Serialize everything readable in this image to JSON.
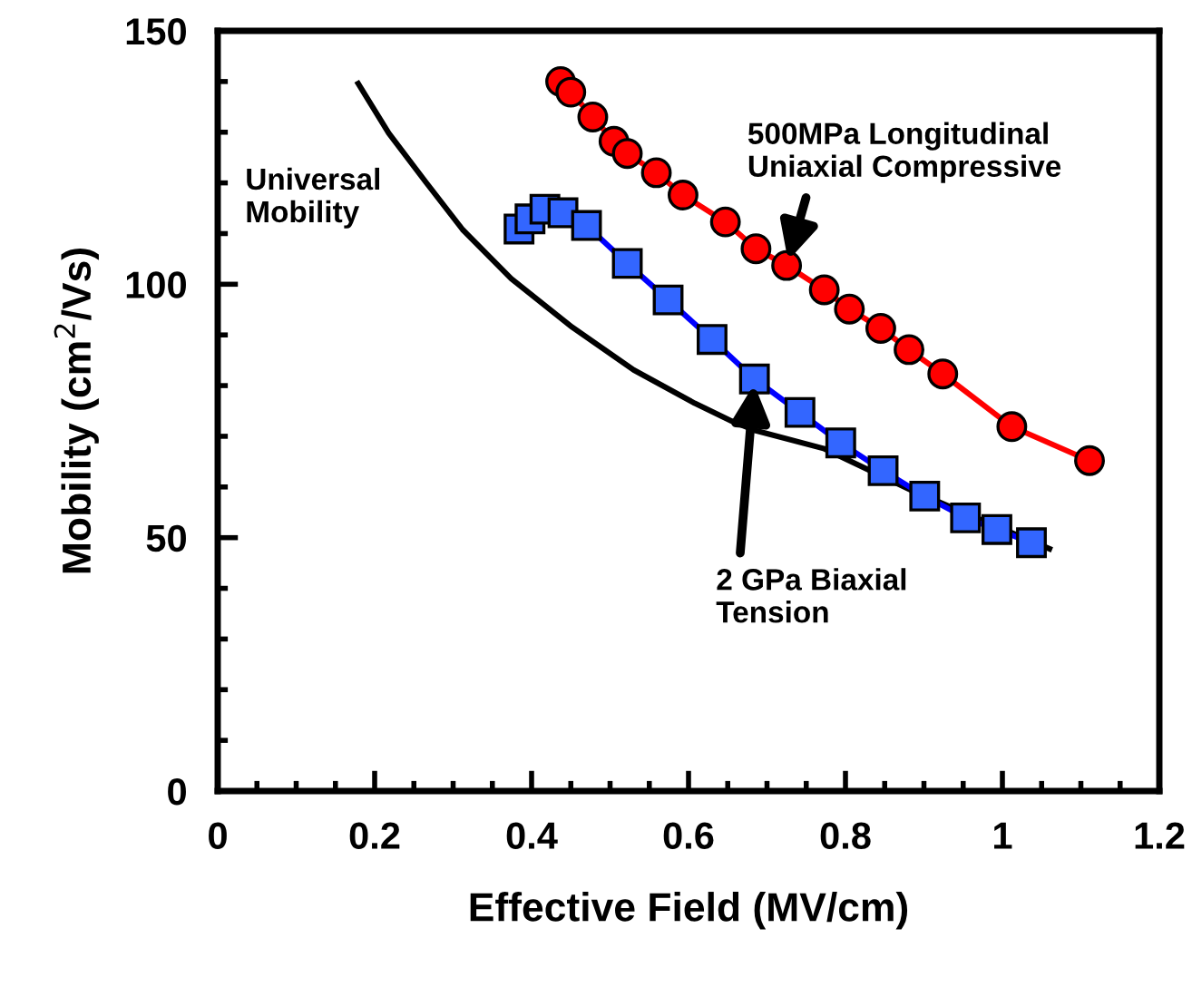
{
  "chart_data": {
    "type": "line",
    "xlabel": "Effective Field (MV/cm)",
    "ylabel": "Mobility (cm$^{2}$/Vs)",
    "xlim": [
      0,
      1.2
    ],
    "xticks": [
      0,
      0.2,
      0.4,
      0.6,
      0.8,
      1,
      1.2
    ],
    "ylim": [
      0,
      150
    ],
    "yticks": [
      0,
      50,
      100,
      150
    ],
    "grid": false,
    "legend": false,
    "series": [
      {
        "color": "#000000",
        "marker": "none",
        "x": [
          0.179,
          0.218,
          0.265,
          0.312,
          0.374,
          0.452,
          0.53,
          0.608,
          0.655,
          0.686,
          0.772,
          0.889,
          1.06
        ],
        "values": [
          139.6,
          129.8,
          120.2,
          110.8,
          101.1,
          91.5,
          83.1,
          76.5,
          73.0,
          71.1,
          67.6,
          59.0,
          47.8
        ]
      },
      {
        "color": "#ff0000",
        "marker": "circle",
        "x": [
          0.437,
          0.45,
          0.478,
          0.505,
          0.522,
          0.559,
          0.593,
          0.647,
          0.686,
          0.725,
          0.773,
          0.805,
          0.845,
          0.881,
          0.924,
          1.012,
          1.111
        ],
        "values": [
          140.0,
          137.9,
          133.0,
          128.2,
          125.8,
          122.0,
          117.6,
          112.3,
          107.0,
          103.7,
          98.9,
          95.1,
          91.3,
          87.1,
          82.3,
          71.9,
          65.2
        ]
      },
      {
        "color": "#0000ff",
        "marker": "square",
        "x": [
          0.384,
          0.398,
          0.417,
          0.44,
          0.47,
          0.522,
          0.574,
          0.63,
          0.684,
          0.742,
          0.794,
          0.848,
          0.901,
          0.953,
          0.993,
          1.037
        ],
        "values": [
          110.9,
          112.9,
          114.8,
          114.1,
          111.6,
          104.1,
          96.9,
          89.1,
          81.3,
          74.7,
          68.7,
          63.2,
          58.2,
          53.9,
          51.6,
          49.0
        ]
      }
    ],
    "annotations": [
      "Universal\nMobility",
      {
        "text": "500MPa Longitudinal\nUniaxial Compressive",
        "x": 0.725,
        "y": 103.7
      },
      {
        "text": "2 GPa Biaxial\nTension",
        "x": 0.684,
        "y": 81.3
      }
    ]
  }
}
